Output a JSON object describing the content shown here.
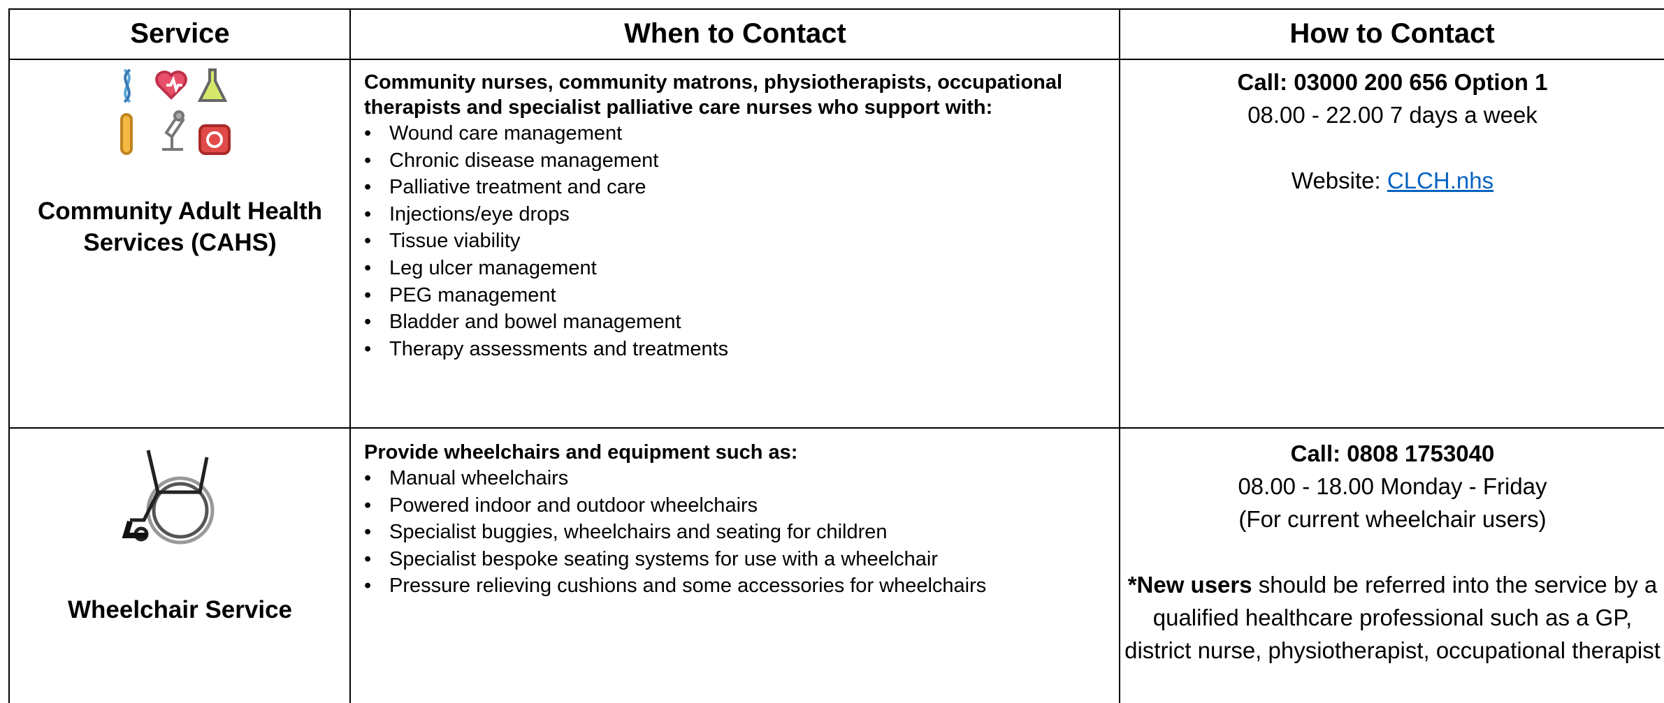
{
  "table": {
    "header": [
      "Service",
      "When to Contact",
      "How to Contact"
    ],
    "rows": [
      {
        "service": "Community Adult Health Services (CAHS)",
        "when_intro": "Community nurses, community matrons, physiotherapists, occupational therapists and specialist palliative care nurses who support with:",
        "when_items": [
          "Wound care management",
          "Chronic disease management",
          "Palliative treatment and care",
          "Injections/eye  drops",
          "Tissue viability",
          "Leg ulcer management",
          "PEG management",
          "Bladder and bowel management",
          "Therapy assessments and treatments"
        ],
        "how": {
          "call": "Call: 03000 200 656 Option 1",
          "hours": "08.00 - 22.00 7 days a week",
          "website_label": "Website:",
          "website_link": "CLCH.nhs"
        }
      },
      {
        "service": "Wheelchair Service",
        "when_intro": "Provide wheelchairs and equipment such as:",
        "when_items": [
          "Manual wheelchairs",
          "Powered indoor and outdoor wheelchairs",
          "Specialist buggies, wheelchairs and seating for children",
          "Specialist bespoke seating systems for use with a wheelchair",
          "Pressure relieving cushions and some accessories for wheelchairs"
        ],
        "how": {
          "call": "Call:  0808 1753040",
          "hours": "08.00 - 18.00 Monday - Friday",
          "note": "(For current wheelchair users)",
          "new_users_bold": "*New users",
          "new_users_text": "should be referred into the service by a qualified healthcare professional such as a GP, district nurse, physiotherapist, occupational therapist"
        }
      }
    ]
  }
}
